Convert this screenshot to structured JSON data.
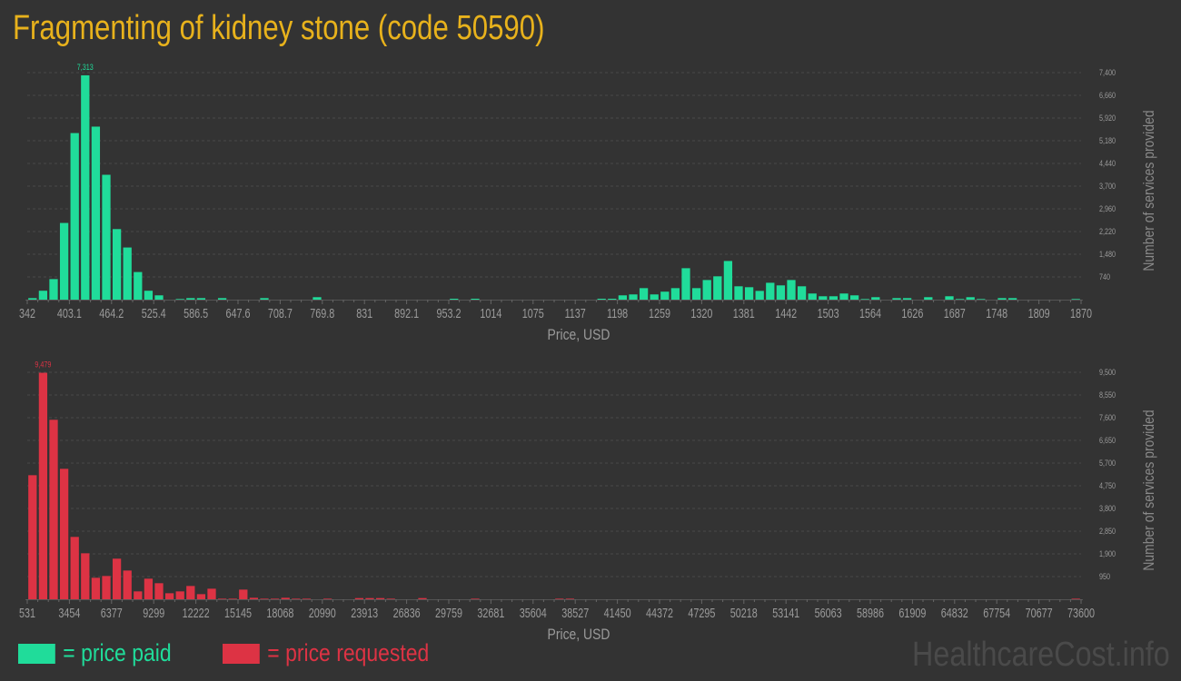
{
  "title": "Fragmenting of kidney stone (code 50590)",
  "legend": {
    "paid": "= price paid",
    "requested": "= price requested"
  },
  "watermark": "HealthcareCost.info",
  "colors": {
    "paid": "#20dc9a",
    "requested": "#dd3344",
    "title": "#e8b21c",
    "background": "#333333"
  },
  "chart_data": [
    {
      "type": "bar",
      "series_key": "paid",
      "xlabel": "Price, USD",
      "ylabel": "Number of services provided",
      "ylim": [
        0,
        7400
      ],
      "grid": true,
      "peak_label": "7,313",
      "y_ticks": [
        "740",
        "1,480",
        "2,220",
        "2,960",
        "3,700",
        "4,440",
        "5,180",
        "5,920",
        "6,660",
        "7,400"
      ],
      "y_tick_values": [
        740,
        1480,
        2220,
        2960,
        3700,
        4440,
        5180,
        5920,
        6660,
        7400
      ],
      "x_tick_labels": [
        "342",
        "403.1",
        "464.2",
        "525.4",
        "586.5",
        "647.6",
        "708.7",
        "769.8",
        "831",
        "892.1",
        "953.2",
        "1014",
        "1075",
        "1137",
        "1198",
        "1259",
        "1320",
        "1381",
        "1442",
        "1503",
        "1564",
        "1626",
        "1687",
        "1748",
        "1809",
        "1870"
      ],
      "values": [
        50,
        290,
        670,
        2500,
        5430,
        7313,
        5640,
        4070,
        2300,
        1700,
        900,
        290,
        140,
        0,
        20,
        50,
        50,
        0,
        50,
        0,
        0,
        0,
        50,
        0,
        0,
        0,
        0,
        80,
        0,
        0,
        0,
        0,
        0,
        0,
        0,
        0,
        0,
        0,
        0,
        0,
        30,
        0,
        30,
        0,
        0,
        0,
        0,
        0,
        0,
        0,
        0,
        0,
        0,
        0,
        30,
        30,
        140,
        170,
        375,
        170,
        260,
        375,
        1025,
        375,
        640,
        760,
        1260,
        435,
        405,
        285,
        550,
        465,
        640,
        435,
        200,
        110,
        110,
        200,
        140,
        20,
        80,
        0,
        50,
        50,
        0,
        80,
        0,
        110,
        20,
        80,
        20,
        0,
        50,
        50,
        0,
        0,
        0,
        0,
        0,
        20
      ]
    },
    {
      "type": "bar",
      "series_key": "requested",
      "xlabel": "Price, USD",
      "ylabel": "Number of services provided",
      "ylim": [
        0,
        9500
      ],
      "grid": true,
      "peak_label": "9,479",
      "y_ticks": [
        "950",
        "1,900",
        "2,850",
        "3,800",
        "4,750",
        "5,700",
        "6,650",
        "7,600",
        "8,550",
        "9,500"
      ],
      "y_tick_values": [
        950,
        1900,
        2850,
        3800,
        4750,
        5700,
        6650,
        7600,
        8550,
        9500
      ],
      "x_tick_labels": [
        "531",
        "3454",
        "6377",
        "9299",
        "12222",
        "15145",
        "18068",
        "20990",
        "23913",
        "26836",
        "29759",
        "32681",
        "35604",
        "38527",
        "41450",
        "44372",
        "47295",
        "50218",
        "53141",
        "56063",
        "58986",
        "61909",
        "64832",
        "67754",
        "70677",
        "73600"
      ],
      "values": [
        5193,
        9479,
        7512,
        5460,
        2610,
        1925,
        900,
        975,
        1700,
        1203,
        330,
        862,
        672,
        253,
        330,
        557,
        215,
        443,
        25,
        25,
        405,
        63,
        25,
        25,
        63,
        25,
        25,
        0,
        25,
        0,
        0,
        50,
        50,
        50,
        25,
        0,
        0,
        50,
        0,
        0,
        0,
        0,
        25,
        0,
        0,
        0,
        0,
        0,
        0,
        0,
        25,
        25,
        0,
        0,
        0,
        0,
        0,
        0,
        0,
        0,
        0,
        0,
        0,
        0,
        0,
        0,
        0,
        0,
        0,
        0,
        0,
        0,
        0,
        0,
        0,
        0,
        0,
        0,
        0,
        0,
        0,
        0,
        0,
        0,
        0,
        0,
        0,
        0,
        0,
        0,
        0,
        0,
        0,
        0,
        0,
        0,
        0,
        0,
        0,
        25
      ]
    }
  ]
}
